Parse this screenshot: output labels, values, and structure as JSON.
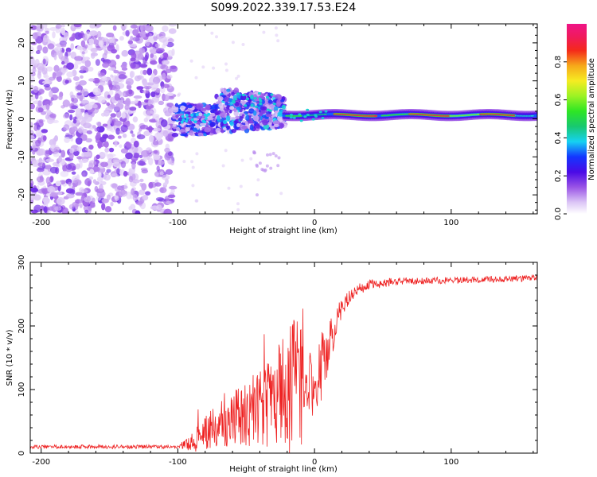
{
  "figure_title": "S099.2022.339.17.53.E24",
  "chart_data": [
    {
      "type": "heatmap",
      "title": "S099.2022.339.17.53.E24",
      "xlabel": "Height of straight line (km)",
      "ylabel": "Frequency (Hz)",
      "xlim": [
        -208,
        163
      ],
      "ylim": [
        -25,
        25
      ],
      "xticks": [
        -200,
        -100,
        0,
        100
      ],
      "yticks": [
        -20,
        -10,
        0,
        10,
        20
      ],
      "grid": false,
      "colorbar": {
        "label": "Normalized spectral amplitude",
        "range": [
          0.0,
          1.0
        ],
        "ticks": [
          0.0,
          0.2,
          0.4,
          0.6,
          0.8
        ],
        "colormap": "gist_ncar_r-like (light violet to magenta)"
      },
      "regions": [
        {
          "name": "noise",
          "x_range": [
            -208,
            -103
          ],
          "freq_range": [
            -25,
            25
          ],
          "amplitude_range": [
            0.0,
            0.15
          ]
        },
        {
          "name": "onset",
          "x_range": [
            -103,
            -72
          ],
          "freq_range": [
            -5,
            4
          ],
          "amplitude_range": [
            0.05,
            0.35
          ]
        },
        {
          "name": "scatter",
          "x_range": [
            -72,
            -22
          ],
          "freq_range": [
            -10,
            10
          ],
          "amplitude_range": [
            0.05,
            0.4
          ]
        },
        {
          "name": "tonal_line",
          "x_range": [
            -22,
            163
          ],
          "center_freq": 1.0,
          "bandwidth": 1.4,
          "amplitude_range": [
            0.2,
            0.95
          ]
        }
      ]
    },
    {
      "type": "line",
      "xlabel": "Height of straight line (km)",
      "ylabel": "SNR (10 * v/v)",
      "xlim": [
        -208,
        163
      ],
      "ylim": [
        0,
        300
      ],
      "xticks": [
        -200,
        -100,
        0,
        100
      ],
      "yticks": [
        0,
        100,
        200,
        300
      ],
      "grid": false,
      "color": "#ee2222",
      "series": [
        {
          "name": "SNR",
          "keypoints_x": [
            -208,
            -100,
            -90,
            -80,
            -60,
            -40,
            -25,
            -15,
            -5,
            5,
            15,
            20,
            30,
            40,
            60,
            100,
            163
          ],
          "keypoints_y": [
            10,
            10,
            15,
            30,
            55,
            70,
            90,
            110,
            95,
            130,
            200,
            230,
            255,
            265,
            270,
            272,
            275
          ],
          "noise_amplitude": [
            3,
            3,
            15,
            30,
            45,
            60,
            90,
            120,
            90,
            60,
            25,
            15,
            10,
            8,
            6,
            5,
            5
          ]
        }
      ]
    }
  ]
}
